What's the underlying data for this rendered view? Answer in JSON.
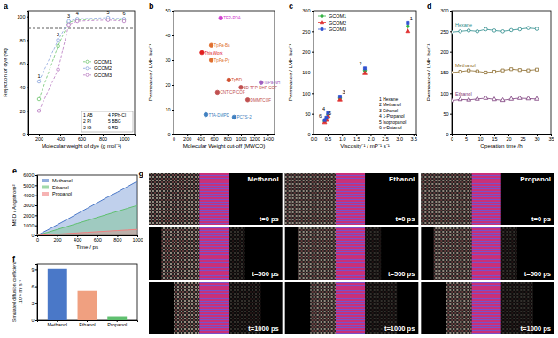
{
  "chart_data": [
    {
      "type": "line",
      "panel": "a",
      "xlabel": "Molecular weight of dye (g mol⁻¹)",
      "ylabel": "Rejection of dye (%)",
      "xlim": [
        100,
        1100
      ],
      "xticks": [
        200,
        400,
        600,
        800,
        1000
      ],
      "ylim": [
        0,
        105
      ],
      "yticks": [
        0,
        20,
        40,
        60,
        80,
        100
      ],
      "x": [
        200,
        380,
        480,
        560,
        850,
        1000
      ],
      "series": [
        {
          "name": "GCOM1",
          "color": "#6cc46c",
          "marker": "open-circle",
          "line_style": "dashed",
          "values": [
            30,
            75,
            95,
            97,
            98,
            97
          ]
        },
        {
          "name": "GCOM2",
          "color": "#8aa4dc",
          "marker": "open-circle",
          "line_style": "dashed",
          "values": [
            45,
            80,
            96,
            98,
            99,
            98
          ]
        },
        {
          "name": "GCOM3",
          "color": "#b878c0",
          "marker": "open-circle",
          "line_style": "dashed",
          "values": [
            20,
            55,
            93,
            96,
            97,
            96
          ]
        }
      ],
      "point_labels": [
        "1",
        "2",
        "3",
        "4",
        "5",
        "6"
      ],
      "reference_line": 90,
      "annotations": [
        "1 AB",
        "2 PI",
        "3 IG",
        "4 PPh-Cl",
        "5 BBG",
        "6 RB"
      ],
      "legend": "right"
    },
    {
      "type": "scatter",
      "panel": "b",
      "xlabel": "Molecular Weight cut-off (MWCO)",
      "ylabel": "Permeance / LMH bar⁻¹",
      "xlim": [
        0,
        1500
      ],
      "xticks": [
        0,
        200,
        400,
        600,
        800,
        1000,
        1200,
        1400
      ],
      "ylim": [
        0,
        50
      ],
      "yticks": [
        0,
        10,
        20,
        30,
        40,
        50
      ],
      "x": [
        700,
        420,
        560,
        560,
        820,
        1300,
        1000,
        1100,
        650,
        480,
        900
      ],
      "series": [
        {
          "name": "MWCO",
          "marker": "circle",
          "values": [
            47,
            33,
            36,
            30,
            22,
            21,
            19,
            14,
            17,
            8,
            7
          ],
          "colors": [
            "#d040d0",
            "#e02020",
            "#e07030",
            "#e07030",
            "#d05030",
            "#a060c0",
            "#c05050",
            "#c05050",
            "#c05050",
            "#4080c0",
            "#4080c0"
          ]
        }
      ],
      "point_labels": [
        "TFP-PDA",
        "This Work",
        "TpPa-Ba",
        "TpPa-Py",
        "TpBD",
        "TaPa-NH",
        "3D TFP-DHF-COF",
        "DMMTCOF",
        "CNT-CP-COF",
        "TTA-DMPD",
        "PCTS-2"
      ]
    },
    {
      "type": "scatter",
      "panel": "c",
      "xlabel": "Viscosity⁻¹ / mP⁻¹ s⁻¹",
      "ylabel": "Permeance / LMH bar⁻¹",
      "xlim": [
        0,
        3.6
      ],
      "xticks": [
        {
          "value": 0,
          "label": "0.0"
        },
        {
          "value": 0.5,
          "label": "0.5"
        },
        {
          "value": 1,
          "label": "1.0"
        },
        {
          "value": 1.5,
          "label": "1.5"
        },
        {
          "value": 2,
          "label": "2.0"
        },
        {
          "value": 2.5,
          "label": "2.5"
        },
        {
          "value": 3,
          "label": "3.0"
        },
        {
          "value": 3.5,
          "label": "3.5"
        }
      ],
      "ylim": [
        0,
        300
      ],
      "yticks": [
        0,
        50,
        100,
        150,
        200,
        250,
        300
      ],
      "x": [
        3.3,
        1.8,
        0.93,
        0.51,
        0.45,
        0.39
      ],
      "series": [
        {
          "name": "GCOM1",
          "color": "#30b040",
          "marker": "circle",
          "values": [
            262,
            155,
            88,
            48,
            38,
            32
          ]
        },
        {
          "name": "GCOM2",
          "color": "#e03030",
          "marker": "triangle",
          "values": [
            250,
            148,
            84,
            44,
            35,
            29
          ]
        },
        {
          "name": "GCOM3",
          "color": "#3050d0",
          "marker": "square",
          "values": [
            270,
            160,
            92,
            52,
            41,
            35
          ]
        }
      ],
      "point_labels": [
        "1",
        "2",
        "3",
        "4",
        "5",
        "6"
      ],
      "annotations": [
        "1 Hexane",
        "2 Methanol",
        "3 Ethanol",
        "4 1-Propanol",
        "5 Isopropanol",
        "6 n-Butanol"
      ],
      "legend": "upper left"
    },
    {
      "type": "line",
      "panel": "d",
      "xlabel": "Operation time /h",
      "ylabel": "Permeance / LMH bar⁻¹",
      "xlim": [
        0,
        35
      ],
      "xticks": [
        0,
        5,
        10,
        15,
        20,
        25,
        30,
        35
      ],
      "ylim": [
        0,
        300
      ],
      "yticks": [
        0,
        50,
        100,
        150,
        200,
        250,
        300
      ],
      "x": [
        0,
        3,
        6,
        9,
        12,
        15,
        18,
        21,
        24,
        27,
        30
      ],
      "series": [
        {
          "name": "Hexane",
          "color": "#2a8a8a",
          "marker": "open-circle",
          "line_style": "solid",
          "values": [
            248,
            250,
            252,
            250,
            255,
            252,
            250,
            253,
            255,
            258,
            256
          ]
        },
        {
          "name": "Methanol",
          "color": "#8a6a2a",
          "marker": "open-square",
          "line_style": "solid",
          "values": [
            150,
            152,
            155,
            153,
            150,
            152,
            155,
            158,
            156,
            155,
            157
          ]
        },
        {
          "name": "Ethanol",
          "color": "#7a3a7a",
          "marker": "open-triangle",
          "line_style": "solid",
          "values": [
            82,
            85,
            84,
            86,
            88,
            85,
            83,
            86,
            88,
            87,
            86
          ]
        }
      ],
      "legend": "inline"
    },
    {
      "type": "area",
      "panel": "e",
      "xlabel": "Time / ps",
      "ylabel": "MSD / Angstrom²",
      "xlim": [
        0,
        1000
      ],
      "xticks": [
        0,
        200,
        400,
        600,
        800,
        1000
      ],
      "ylim": [
        0,
        6000
      ],
      "yticks": [
        0,
        1000,
        2000,
        3000,
        4000,
        5000,
        6000
      ],
      "x": [
        0,
        100,
        200,
        300,
        400,
        500,
        600,
        700,
        800,
        900,
        1000
      ],
      "series": [
        {
          "name": "Methanol",
          "color": "#4a78c8",
          "values": [
            0,
            520,
            1060,
            1600,
            2150,
            2700,
            3250,
            3800,
            4300,
            4850,
            5400
          ]
        },
        {
          "name": "Ethanol",
          "color": "#60c070",
          "values": [
            0,
            290,
            590,
            890,
            1190,
            1490,
            1790,
            2090,
            2390,
            2690,
            2990
          ]
        },
        {
          "name": "Propanol",
          "color": "#f08080",
          "values": [
            0,
            60,
            120,
            180,
            240,
            300,
            360,
            420,
            480,
            540,
            600
          ]
        }
      ],
      "legend": "upper left"
    },
    {
      "type": "bar",
      "panel": "f",
      "ylabel": [
        "Simulated diffusion coefficient",
        "/10⁻⁹ m² s⁻¹"
      ],
      "categories": [
        "Methanol",
        "Ethanol",
        "Propanol"
      ],
      "values": [
        9.1,
        5.2,
        0.7
      ],
      "colors": [
        "#4a78c8",
        "#f0a080",
        "#60c070"
      ],
      "ylim": [
        0,
        10
      ],
      "yticks": [
        0,
        3,
        6,
        9
      ]
    },
    {
      "type": "image_grid",
      "panel": "g",
      "columns": [
        "Methanol",
        "Ethanol",
        "Propanol"
      ],
      "rows": [
        "t=0 ps",
        "t=500 ps",
        "t=1000 ps"
      ]
    }
  ]
}
